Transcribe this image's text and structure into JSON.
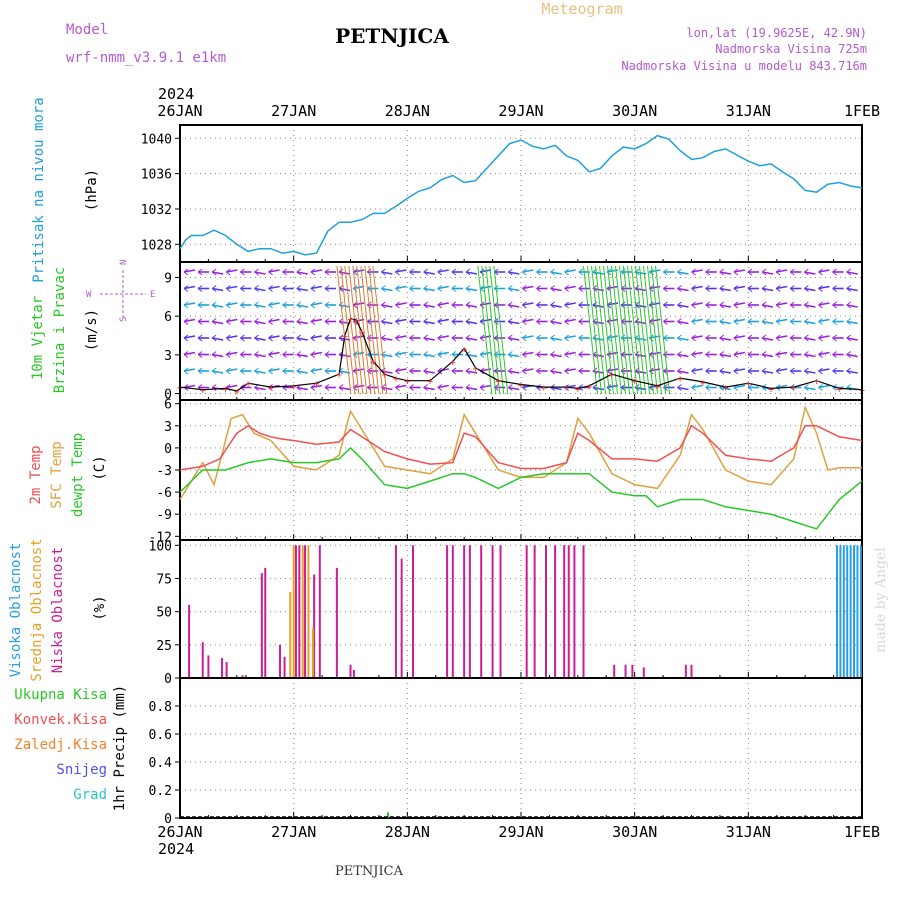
{
  "header": {
    "model_label": "Model",
    "model_name": "wrf-nmm_v3.9.1 e1km",
    "station": "PETNJICA",
    "meteogram": "Meteogram",
    "lonlat": "lon,lat (19.9625E, 42.9N)",
    "altitude": "Nadmorska Visina 725m",
    "model_altitude": "Nadmorska Visina u modelu 843.716m",
    "footer_station": "PETNJICA",
    "watermark": "made by Angel"
  },
  "colors": {
    "pressure": "#1ea0dc",
    "temp2m": "#f05050",
    "sfc": "#e0a040",
    "dewpt": "#28c828",
    "purple_text": "#b45ad2",
    "low_cloud": "#c81e96",
    "mid_cloud": "#e6a028",
    "high_cloud": "#28a0e6",
    "wind_green": "#28c828",
    "precip_total": "#28c828",
    "precip_conv": "#f05050",
    "precip_frozen": "#f08228",
    "precip_snow": "#5050f0",
    "precip_grad": "#28c8c8"
  },
  "chart_data": [
    {
      "id": "pressure",
      "type": "line",
      "ylabel_main": "Pritisak na nivou mora",
      "ylabel_unit": "(hPa)",
      "x_ticks": [
        "26JAN",
        "27JAN",
        "28JAN",
        "29JAN",
        "30JAN",
        "31JAN",
        "1FEB"
      ],
      "year": "2024",
      "ylim": [
        1026,
        1041.5
      ],
      "y_ticks": [
        "1028",
        "1032",
        "1036",
        "1040"
      ],
      "y_tick_values": [
        1028,
        1032,
        1036,
        1040
      ],
      "grid": true,
      "series": [
        {
          "x": [
            0,
            0.05,
            0.1,
            0.2,
            0.3,
            0.4,
            0.5,
            0.6,
            0.7,
            0.8,
            0.9,
            1.0,
            1.1,
            1.2,
            1.3,
            1.4,
            1.5,
            1.6,
            1.7,
            1.8,
            1.9,
            2.0,
            2.1,
            2.2,
            2.3,
            2.4,
            2.5,
            2.6,
            2.7,
            2.8,
            2.9,
            3.0,
            3.1,
            3.2,
            3.3,
            3.4,
            3.5,
            3.6,
            3.7,
            3.8,
            3.9,
            4.0,
            4.1,
            4.2,
            4.3,
            4.4,
            4.5,
            4.6,
            4.7,
            4.8,
            4.9,
            5.0,
            5.1,
            5.2,
            5.3,
            5.4,
            5.5,
            5.6,
            5.7,
            5.8,
            5.9,
            6.0
          ],
          "y": [
            1027.5,
            1028.5,
            1029.0,
            1029.0,
            1029.6,
            1029.0,
            1028.0,
            1027.2,
            1027.5,
            1027.5,
            1027.0,
            1027.2,
            1026.8,
            1027.0,
            1029.5,
            1030.5,
            1030.5,
            1030.8,
            1031.5,
            1031.5,
            1032.3,
            1033.2,
            1034.0,
            1034.4,
            1035.3,
            1035.8,
            1035.0,
            1035.2,
            1036.6,
            1038.0,
            1039.4,
            1039.8,
            1039.1,
            1038.8,
            1039.2,
            1038.0,
            1037.5,
            1036.2,
            1036.6,
            1038.0,
            1039.0,
            1038.8,
            1039.4,
            1040.3,
            1039.9,
            1038.6,
            1037.6,
            1037.8,
            1038.5,
            1038.8,
            1038.1,
            1037.4,
            1036.9,
            1037.1,
            1036.2,
            1035.4,
            1034.1,
            1033.9,
            1034.8,
            1035.0,
            1034.6,
            1034.4
          ]
        }
      ]
    },
    {
      "id": "wind",
      "type": "line",
      "ylabel_main": "10m Vjetar",
      "ylabel_sub": "Brzina i Pravac",
      "ylabel_unit": "(m/s)",
      "compass": {
        "n": "N",
        "w": "W",
        "e": "E",
        "s": "S"
      },
      "ylim": [
        -0.5,
        10.2
      ],
      "y_ticks": [
        "0",
        "3",
        "6",
        "9"
      ],
      "y_tick_values": [
        0,
        3,
        6,
        9
      ],
      "grid": true,
      "series": [
        {
          "name": "speed",
          "x": [
            0,
            0.2,
            0.4,
            0.5,
            0.6,
            0.8,
            1.0,
            1.2,
            1.4,
            1.45,
            1.5,
            1.55,
            1.6,
            1.7,
            1.8,
            1.9,
            2.0,
            2.2,
            2.4,
            2.5,
            2.6,
            2.8,
            3.0,
            3.2,
            3.4,
            3.5,
            3.6,
            3.8,
            4.0,
            4.2,
            4.4,
            4.6,
            4.8,
            5.0,
            5.2,
            5.4,
            5.6,
            5.8,
            6.0
          ],
          "y": [
            0.5,
            0.3,
            0.4,
            0.2,
            0.8,
            0.5,
            0.6,
            0.8,
            1.5,
            4.5,
            5.8,
            5.7,
            4.8,
            2.5,
            1.5,
            1.2,
            1.0,
            1.0,
            2.5,
            3.5,
            2.0,
            1.0,
            0.7,
            0.5,
            0.5,
            0.4,
            0.6,
            1.5,
            1.0,
            0.6,
            1.2,
            0.9,
            0.5,
            0.8,
            0.4,
            0.5,
            1.0,
            0.4,
            0.3
          ]
        }
      ]
    },
    {
      "id": "temperature",
      "type": "line",
      "ylabel_lines": [
        "2m Temp",
        "SFC Temp",
        "dewpt Temp"
      ],
      "ylabel_unit": "(C)",
      "ylim": [
        -12.5,
        6.5
      ],
      "y_ticks": [
        "6",
        "3",
        "0",
        "-3",
        "-6",
        "-9",
        "-12"
      ],
      "y_tick_values": [
        6,
        3,
        0,
        -3,
        -6,
        -9,
        -12
      ],
      "grid": true,
      "series": [
        {
          "name": "2m Temp",
          "x": [
            0,
            0.2,
            0.35,
            0.5,
            0.6,
            0.7,
            0.8,
            0.9,
            1.0,
            1.2,
            1.4,
            1.5,
            1.6,
            1.8,
            2.0,
            2.2,
            2.4,
            2.5,
            2.6,
            2.8,
            3.0,
            3.2,
            3.4,
            3.5,
            3.6,
            3.8,
            4.0,
            4.2,
            4.4,
            4.5,
            4.6,
            4.8,
            5.0,
            5.2,
            5.4,
            5.5,
            5.6,
            5.8,
            6.0
          ],
          "y": [
            -3,
            -2.5,
            -1.5,
            2.0,
            3.0,
            2.0,
            1.5,
            1.2,
            1.0,
            0.5,
            0.8,
            2.5,
            1.5,
            -0.5,
            -1.5,
            -2.2,
            -2.0,
            2.0,
            1.5,
            -2.0,
            -2.8,
            -2.8,
            -2.0,
            2.0,
            1.0,
            -1.5,
            -1.5,
            -1.8,
            0.0,
            3.0,
            2.0,
            -1.0,
            -1.5,
            -1.8,
            0.0,
            3.0,
            3.0,
            1.5,
            1.0
          ]
        },
        {
          "name": "SFC Temp",
          "x": [
            0,
            0.2,
            0.3,
            0.45,
            0.55,
            0.65,
            0.8,
            1.0,
            1.2,
            1.4,
            1.5,
            1.6,
            1.8,
            2.0,
            2.2,
            2.4,
            2.5,
            2.6,
            2.8,
            3.0,
            3.2,
            3.4,
            3.5,
            3.6,
            3.8,
            4.0,
            4.2,
            4.4,
            4.5,
            4.6,
            4.8,
            5.0,
            5.2,
            5.4,
            5.5,
            5.6,
            5.7,
            5.8,
            6.0
          ],
          "y": [
            -7,
            -2,
            -5,
            4.0,
            4.5,
            2.0,
            1.0,
            -2.5,
            -3.0,
            -1.0,
            5.0,
            2.5,
            -2.5,
            -3.0,
            -3.5,
            -1.5,
            4.5,
            2.0,
            -3.0,
            -4.0,
            -4.0,
            -2.0,
            4.0,
            2.0,
            -3.5,
            -5.0,
            -5.5,
            -1.0,
            4.5,
            2.5,
            -3.0,
            -4.5,
            -5.0,
            -1.5,
            5.5,
            2.0,
            -3.0,
            -2.7,
            -2.7
          ]
        },
        {
          "name": "dewpt Temp",
          "x": [
            0,
            0.2,
            0.4,
            0.6,
            0.8,
            1.0,
            1.2,
            1.4,
            1.5,
            1.6,
            1.8,
            2.0,
            2.2,
            2.4,
            2.5,
            2.6,
            2.8,
            3.0,
            3.2,
            3.4,
            3.6,
            3.8,
            4.0,
            4.1,
            4.2,
            4.4,
            4.6,
            4.8,
            5.0,
            5.2,
            5.4,
            5.5,
            5.6,
            5.8,
            6.0
          ],
          "y": [
            -6,
            -3,
            -3,
            -2,
            -1.5,
            -2,
            -2,
            -1.5,
            0,
            -1.5,
            -5,
            -5.5,
            -4.5,
            -3.5,
            -3.5,
            -4,
            -5.5,
            -4,
            -3.5,
            -3.5,
            -3.5,
            -6,
            -6.5,
            -6.5,
            -8,
            -7,
            -7,
            -8,
            -8.5,
            -9,
            -10,
            -10.5,
            -11,
            -7,
            -4.5
          ]
        }
      ]
    },
    {
      "id": "clouds",
      "type": "bar",
      "ylabel_lines": [
        "Visoka Oblacnost",
        "Srednja Oblacnost",
        "Niska Oblacnost"
      ],
      "ylabel_unit": "(%)",
      "ylim": [
        0,
        104
      ],
      "y_ticks": [
        "0",
        "25",
        "50",
        "75",
        "100"
      ],
      "y_tick_values": [
        0,
        25,
        50,
        75,
        100
      ],
      "grid": true,
      "series": [
        {
          "name": "Niska Oblacnost",
          "x": [
            0.08,
            0.2,
            0.25,
            0.37,
            0.41,
            0.55,
            0.58,
            0.72,
            0.75,
            0.88,
            0.92,
            1.02,
            1.05,
            1.1,
            1.18,
            1.23,
            1.38,
            1.5,
            1.53,
            1.9,
            1.95,
            2.05,
            2.35,
            2.4,
            2.5,
            2.55,
            2.65,
            2.75,
            2.82,
            3.05,
            3.12,
            3.22,
            3.3,
            3.38,
            3.42,
            3.47,
            3.55,
            3.82,
            3.92,
            3.98,
            4.08,
            4.45,
            4.5
          ],
          "values": [
            55,
            27,
            17,
            15,
            12,
            2,
            2,
            79,
            83,
            25,
            16,
            100,
            100,
            100,
            78,
            100,
            83,
            10,
            6,
            100,
            90,
            100,
            100,
            100,
            100,
            100,
            100,
            100,
            100,
            100,
            100,
            100,
            100,
            100,
            100,
            100,
            100,
            10,
            10,
            10,
            8,
            10,
            10
          ]
        },
        {
          "name": "Srednja Oblacnost",
          "x": [
            0.97,
            1.0,
            1.08,
            1.13,
            1.17
          ],
          "values": [
            65,
            100,
            100,
            100,
            38
          ]
        },
        {
          "name": "Visoka Oblacnost",
          "x": [
            5.78,
            5.81,
            5.84,
            5.87,
            5.9,
            5.93,
            5.96,
            5.99
          ],
          "values": [
            100,
            100,
            100,
            100,
            100,
            100,
            100,
            100
          ]
        }
      ]
    },
    {
      "id": "precip",
      "type": "bar",
      "ylabel_lines": [
        "Ukupna Kisa",
        "Konvek.Kisa",
        "Zaledj.Kisa",
        "Snijeg",
        "Grad"
      ],
      "ylabel_unit": "1hr Precip (mm)",
      "ylim": [
        0,
        1.0
      ],
      "y_ticks": [
        "0",
        "0.2",
        "0.4",
        "0.6",
        "0.8"
      ],
      "y_tick_values": [
        0,
        0.2,
        0.4,
        0.6,
        0.8
      ],
      "grid": true,
      "series": [
        {
          "name": "Ukupna Kisa",
          "x": [
            1.83
          ],
          "values": [
            0.04
          ]
        }
      ]
    }
  ]
}
